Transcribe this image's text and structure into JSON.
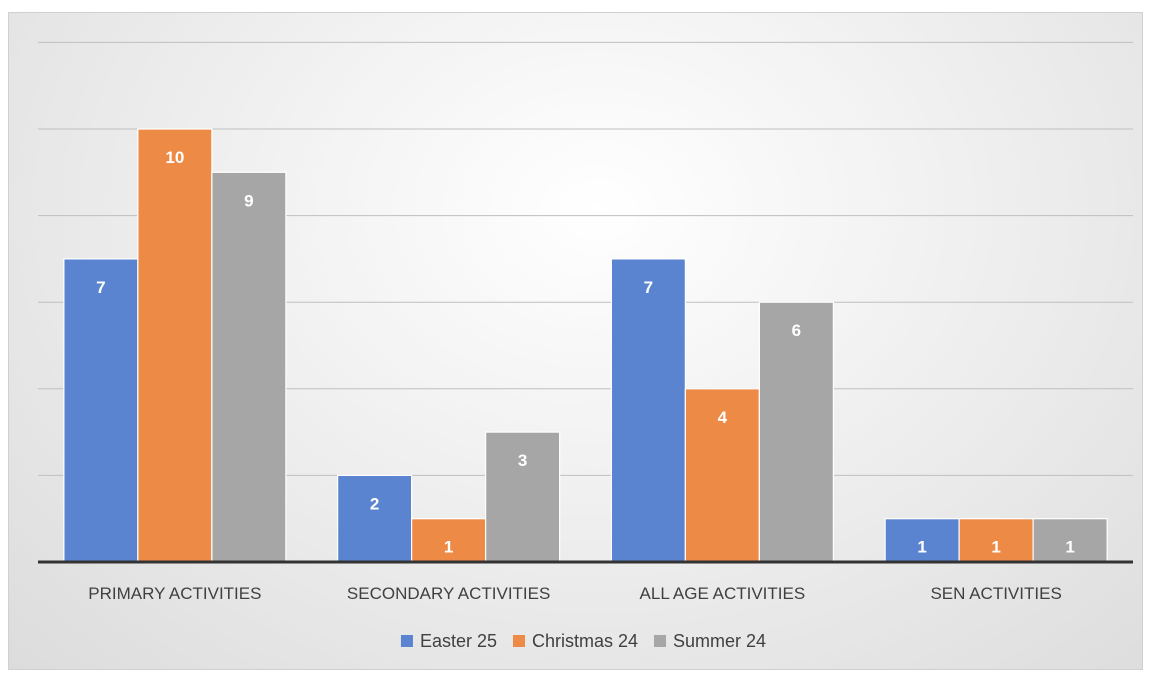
{
  "chart_data": {
    "type": "bar",
    "title": "",
    "xlabel": "",
    "ylabel": "",
    "categories": [
      "PRIMARY ACTIVITIES",
      "SECONDARY ACTIVITIES",
      "ALL AGE ACTIVITIES",
      "SEN ACTIVITIES"
    ],
    "series": [
      {
        "name": "Easter 25",
        "color": "#5b84d0",
        "values": [
          7,
          2,
          7,
          1
        ]
      },
      {
        "name": "Christmas 24",
        "color": "#ed8a45",
        "values": [
          10,
          1,
          4,
          1
        ]
      },
      {
        "name": "Summer 24",
        "color": "#a6a6a6",
        "values": [
          9,
          3,
          6,
          1
        ]
      }
    ],
    "ylim": [
      0,
      12
    ],
    "gridlines": true,
    "legend_position": "bottom",
    "data_labels": true
  }
}
